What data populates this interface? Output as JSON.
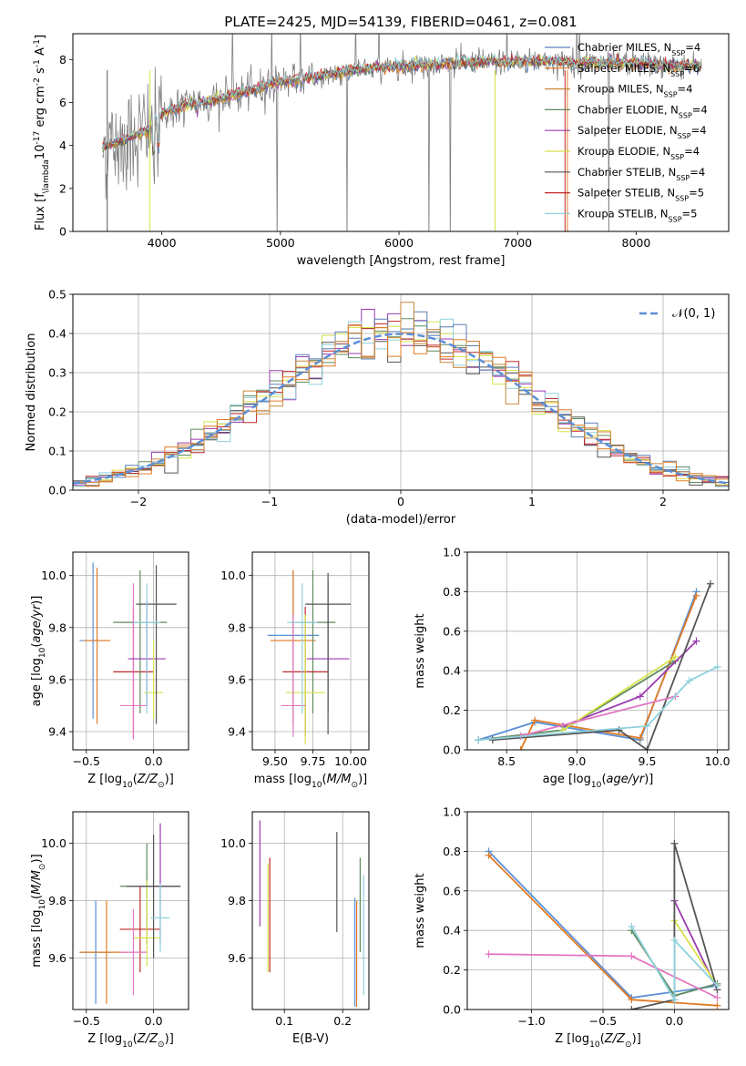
{
  "figure": {
    "title": "PLATE=2425, MJD=54139, FIBERID=0461, z=0.081"
  },
  "colors": {
    "tab10": [
      "#1f77b4",
      "#ff7f0e",
      "#2ca02c",
      "#d62728",
      "#9467bd",
      "#8c564b",
      "#e377c2",
      "#7f7f7f",
      "#bcbd22",
      "#17becf"
    ],
    "models": [
      "#5b7fb6",
      "#e07b25",
      "#c9873a",
      "#5e8a5e",
      "#9b3bb0",
      "#d8e24a",
      "#555555",
      "#c0282a",
      "#8fd1dc"
    ],
    "model_weights": [
      "#5b8fd6",
      "#e07b25",
      "#5e8a5e",
      "#9b3bb0",
      "#d8e24a",
      "#555555",
      "#e377c2",
      "#8fd1dc"
    ],
    "normal_curve": "#5b8fd6",
    "grid": "#b0b0b0"
  },
  "chart_data": [
    {
      "id": "spectrum",
      "type": "line",
      "xlabel": "wavelength [Angstrom, rest frame]",
      "ylabel": "Flux [f$_\\lambda$10$^{-17}$ erg cm$^{-2}$ s$^{-1}$ A$^{-1}$]",
      "xlim": [
        3250,
        8780
      ],
      "ylim": [
        0,
        9.2
      ],
      "xticks": [
        4000,
        5000,
        6000,
        7000,
        8000
      ],
      "yticks": [
        0,
        2,
        4,
        6,
        8
      ],
      "grid": false,
      "legend_position": "top-right",
      "continuum": {
        "x": [
          3500,
          3700,
          3900,
          4000,
          4200,
          4500,
          4800,
          5000,
          5300,
          5600,
          6000,
          6400,
          6800,
          7200,
          7600,
          8000,
          8500
        ],
        "y": [
          3.9,
          4.3,
          4.8,
          5.5,
          5.9,
          6.2,
          6.6,
          7.0,
          7.2,
          7.5,
          7.7,
          7.8,
          7.9,
          7.9,
          7.85,
          7.8,
          7.7
        ]
      },
      "legend": [
        {
          "label": "Chabrier MILES, N",
          "sub": "SSP",
          "val": "=4"
        },
        {
          "label": "Salpeter MILES, N",
          "sub": "SSP",
          "val": "=6"
        },
        {
          "label": "Kroupa MILES, N",
          "sub": "SSP",
          "val": "=4"
        },
        {
          "label": "Chabrier ELODIE, N",
          "sub": "SSP",
          "val": "=4"
        },
        {
          "label": "Salpeter ELODIE, N",
          "sub": "SSP",
          "val": "=4"
        },
        {
          "label": "Kroupa ELODIE, N",
          "sub": "SSP",
          "val": "=4"
        },
        {
          "label": "Chabrier STELIB, N",
          "sub": "SSP",
          "val": "=4"
        },
        {
          "label": "Salpeter STELIB, N",
          "sub": "SSP",
          "val": "=5"
        },
        {
          "label": "Kroupa STELIB, N",
          "sub": "SSP",
          "val": "=5"
        }
      ]
    },
    {
      "id": "residuals",
      "type": "bar",
      "xlabel": "(data-model)/error",
      "ylabel": "Normed distribution",
      "xlim": [
        -2.5,
        2.5
      ],
      "ylim": [
        0,
        0.5
      ],
      "xticks": [
        -2,
        -1,
        0,
        1,
        2
      ],
      "xticklabels": [
        "−2",
        "−1",
        "0",
        "1",
        "2"
      ],
      "yticks": [
        0.0,
        0.1,
        0.2,
        0.3,
        0.4,
        0.5
      ],
      "yticklabels": [
        "0.0",
        "0.1",
        "0.2",
        "0.3",
        "0.4",
        "0.5"
      ],
      "grid": true,
      "bin_width": 0.1,
      "legend_label": "𝒩(0, 1)",
      "legend_position": "top-right"
    },
    {
      "id": "z-age",
      "type": "scatter",
      "xlabel": "Z [log$_{10}$($Z/Z_\\odot$)]",
      "ylabel": "age  [log$_{10}$($age/yr$)]",
      "xlim": [
        -0.6,
        0.26
      ],
      "ylim": [
        9.33,
        10.09
      ],
      "xticks": [
        -0.5,
        0.0
      ],
      "xticklabels": [
        "−0.5",
        "0.0"
      ],
      "yticks": [
        9.4,
        9.6,
        9.8,
        10.0
      ],
      "yticklabels": [
        "9.4",
        "9.6",
        "9.8",
        "10.0"
      ],
      "grid": true,
      "points": [
        {
          "x": -0.45,
          "xerr": 0.1,
          "y": 9.75,
          "yerr_lo": 0.3,
          "yerr_hi": 0.3,
          "c": 0
        },
        {
          "x": -0.42,
          "xerr": 0.1,
          "y": 9.75,
          "yerr_lo": 0.32,
          "yerr_hi": 0.28,
          "c": 1
        },
        {
          "x": -0.15,
          "xerr": 0.15,
          "y": 9.63,
          "yerr_lo": 0.25,
          "yerr_hi": 0.25,
          "c": 3
        },
        {
          "x": -0.1,
          "xerr": 0.2,
          "y": 9.82,
          "yerr_lo": 0.35,
          "yerr_hi": 0.2,
          "c": 2
        },
        {
          "x": -0.15,
          "xerr": 0.1,
          "y": 9.5,
          "yerr_lo": 0.13,
          "yerr_hi": 0.47,
          "c": 6
        },
        {
          "x": -0.05,
          "xerr": 0.14,
          "y": 9.68,
          "yerr_lo": 0.18,
          "yerr_hi": 0.22,
          "c": 4
        },
        {
          "x": 0.0,
          "xerr": 0.07,
          "y": 9.55,
          "yerr_lo": 0.1,
          "yerr_hi": 0.2,
          "c": 5
        },
        {
          "x": 0.02,
          "xerr": 0.15,
          "y": 9.89,
          "yerr_lo": 0.46,
          "yerr_hi": 0.15,
          "c": 7
        },
        {
          "x": -0.05,
          "xerr": 0.1,
          "y": 9.82,
          "yerr_lo": 0.35,
          "yerr_hi": 0.15,
          "c": 8
        }
      ]
    },
    {
      "id": "mass-age",
      "type": "scatter",
      "xlabel": "mass [log$_{10}$($M/M_\\odot$)]",
      "ylabel": "",
      "xlim": [
        9.35,
        10.12
      ],
      "ylim": [
        9.33,
        10.09
      ],
      "xticks": [
        9.5,
        9.75,
        10.0
      ],
      "xticklabels": [
        "9.50",
        "9.75",
        "10.00"
      ],
      "yticks": [
        9.4,
        9.6,
        9.8,
        10.0
      ],
      "yticklabels": [
        "9.4",
        "9.6",
        "9.8",
        "10.0"
      ],
      "grid": true,
      "points": [
        {
          "x": 9.62,
          "xerr": 0.17,
          "y": 9.77,
          "yerr_lo": 0.3,
          "yerr_hi": 0.25,
          "c": 0
        },
        {
          "x": 9.62,
          "xerr": 0.15,
          "y": 9.75,
          "yerr_lo": 0.32,
          "yerr_hi": 0.27,
          "c": 1
        },
        {
          "x": 9.75,
          "xerr": 0.15,
          "y": 9.82,
          "yerr_lo": 0.35,
          "yerr_hi": 0.2,
          "c": 2
        },
        {
          "x": 9.7,
          "xerr": 0.15,
          "y": 9.63,
          "yerr_lo": 0.25,
          "yerr_hi": 0.25,
          "c": 3
        },
        {
          "x": 9.85,
          "xerr": 0.14,
          "y": 9.68,
          "yerr_lo": 0.2,
          "yerr_hi": 0.3,
          "c": 4
        },
        {
          "x": 9.7,
          "xerr": 0.13,
          "y": 9.55,
          "yerr_lo": 0.2,
          "yerr_hi": 0.3,
          "c": 5
        },
        {
          "x": 9.85,
          "xerr": 0.15,
          "y": 9.89,
          "yerr_lo": 0.5,
          "yerr_hi": 0.12,
          "c": 7
        },
        {
          "x": 9.62,
          "xerr": 0.08,
          "y": 9.5,
          "yerr_lo": 0.12,
          "yerr_hi": 0.35,
          "c": 6
        },
        {
          "x": 9.68,
          "xerr": 0.1,
          "y": 9.82,
          "yerr_lo": 0.35,
          "yerr_hi": 0.15,
          "c": 8
        }
      ]
    },
    {
      "id": "age-weight",
      "type": "line",
      "xlabel": "age  [log$_{10}$($age/yr$)]",
      "ylabel": "mass weight",
      "xlim": [
        8.22,
        10.08
      ],
      "ylim": [
        0,
        1.0
      ],
      "xticks": [
        8.5,
        9.0,
        9.5,
        10.0
      ],
      "xticklabels": [
        "8.5",
        "9.0",
        "9.5",
        "10.0"
      ],
      "yticks": [
        0,
        0.2,
        0.4,
        0.6,
        0.8,
        1.0
      ],
      "yticklabels": [
        "0.0",
        "0.2",
        "0.4",
        "0.6",
        "0.8",
        "1.0"
      ],
      "grid": true,
      "series": [
        {
          "c": 0,
          "x": [
            8.3,
            8.7,
            9.45,
            9.85
          ],
          "y": [
            0.05,
            0.14,
            0.05,
            0.8
          ]
        },
        {
          "c": 1,
          "x": [
            8.6,
            8.7,
            9.45,
            9.85
          ],
          "y": [
            0.0,
            0.15,
            0.06,
            0.78
          ]
        },
        {
          "c": 2,
          "x": [
            8.3,
            8.9,
            9.7
          ],
          "y": [
            0.05,
            0.1,
            0.45
          ]
        },
        {
          "c": 3,
          "x": [
            8.9,
            9.45,
            9.85
          ],
          "y": [
            0.12,
            0.27,
            0.55
          ]
        },
        {
          "c": 4,
          "x": [
            8.9,
            9.7
          ],
          "y": [
            0.1,
            0.47
          ]
        },
        {
          "c": 5,
          "x": [
            8.4,
            9.3,
            9.5,
            9.95
          ],
          "y": [
            0.05,
            0.1,
            0.0,
            0.84
          ]
        },
        {
          "c": 6,
          "x": [
            8.6,
            9.7
          ],
          "y": [
            0.07,
            0.27
          ]
        },
        {
          "c": 7,
          "x": [
            8.3,
            9.5,
            9.8,
            10.0
          ],
          "y": [
            0.05,
            0.12,
            0.35,
            0.42
          ]
        }
      ]
    },
    {
      "id": "z-mass",
      "type": "scatter",
      "xlabel": "Z [log$_{10}$($Z/Z_\\odot$)]",
      "ylabel": "mass [log$_{10}$($M/M_\\odot$)]",
      "xlim": [
        -0.6,
        0.26
      ],
      "ylim": [
        9.42,
        10.11
      ],
      "xticks": [
        -0.5,
        0.0
      ],
      "xticklabels": [
        "−0.5",
        "0.0"
      ],
      "yticks": [
        9.6,
        9.8,
        10.0
      ],
      "yticklabels": [
        "9.6",
        "9.8",
        "10.0"
      ],
      "grid": true,
      "points": [
        {
          "x": -0.43,
          "xerr": 0.12,
          "y": 9.62,
          "yerr_lo": 0.18,
          "yerr_hi": 0.18,
          "c": 0
        },
        {
          "x": -0.35,
          "xerr": 0.2,
          "y": 9.62,
          "yerr_lo": 0.18,
          "yerr_hi": 0.18,
          "c": 1
        },
        {
          "x": -0.1,
          "xerr": 0.15,
          "y": 9.7,
          "yerr_lo": 0.15,
          "yerr_hi": 0.15,
          "c": 3
        },
        {
          "x": -0.05,
          "xerr": 0.2,
          "y": 9.85,
          "yerr_lo": 0.2,
          "yerr_hi": 0.15,
          "c": 2
        },
        {
          "x": 0.05,
          "xerr": 0.15,
          "y": 9.85,
          "yerr_lo": 0.2,
          "yerr_hi": 0.22,
          "c": 4
        },
        {
          "x": -0.05,
          "xerr": 0.1,
          "y": 9.67,
          "yerr_lo": 0.1,
          "yerr_hi": 0.2,
          "c": 5
        },
        {
          "x": 0.0,
          "xerr": 0.2,
          "y": 9.85,
          "yerr_lo": 0.25,
          "yerr_hi": 0.18,
          "c": 7
        },
        {
          "x": -0.15,
          "xerr": 0.1,
          "y": 9.62,
          "yerr_lo": 0.15,
          "yerr_hi": 0.15,
          "c": 6
        },
        {
          "x": 0.05,
          "xerr": 0.07,
          "y": 9.74,
          "yerr_lo": 0.12,
          "yerr_hi": 0.12,
          "c": 8
        }
      ]
    },
    {
      "id": "ebv-mass",
      "type": "scatter",
      "xlabel": "E(B-V)",
      "ylabel": "",
      "xlim": [
        0.045,
        0.245
      ],
      "ylim": [
        9.42,
        10.11
      ],
      "xticks": [
        0.1,
        0.2
      ],
      "xticklabels": [
        "0.1",
        "0.2"
      ],
      "yticks": [
        9.6,
        9.8,
        10.0
      ],
      "yticklabels": [
        "9.6",
        "9.8",
        "10.0"
      ],
      "grid": true,
      "points": [
        {
          "x": 0.058,
          "y": 9.9,
          "yerr_lo": 0.19,
          "yerr_hi": 0.18,
          "c": 4
        },
        {
          "x": 0.072,
          "y": 9.75,
          "yerr_lo": 0.2,
          "yerr_hi": 0.18,
          "c": 5
        },
        {
          "x": 0.075,
          "y": 9.75,
          "yerr_lo": 0.2,
          "yerr_hi": 0.2,
          "c": 3
        },
        {
          "x": 0.19,
          "y": 9.86,
          "yerr_lo": 0.17,
          "yerr_hi": 0.18,
          "c": 7
        },
        {
          "x": 0.221,
          "y": 9.63,
          "yerr_lo": 0.2,
          "yerr_hi": 0.18,
          "c": 0
        },
        {
          "x": 0.224,
          "y": 9.63,
          "yerr_lo": 0.2,
          "yerr_hi": 0.17,
          "c": 1
        },
        {
          "x": 0.23,
          "y": 9.8,
          "yerr_lo": 0.18,
          "yerr_hi": 0.15,
          "c": 2
        },
        {
          "x": 0.236,
          "y": 9.67,
          "yerr_lo": 0.2,
          "yerr_hi": 0.22,
          "c": 8
        }
      ]
    },
    {
      "id": "z-weight",
      "type": "line",
      "xlabel": "Z [log$_{10}$($Z/Z_\\odot$)]",
      "ylabel": "mass weight",
      "xlim": [
        -1.45,
        0.38
      ],
      "ylim": [
        0,
        1.0
      ],
      "xticks": [
        -1.0,
        -0.5,
        0.0
      ],
      "xticklabels": [
        "−1.0",
        "−0.5",
        "0.0"
      ],
      "yticks": [
        0,
        0.2,
        0.4,
        0.6,
        0.8,
        1.0
      ],
      "yticklabels": [
        "0.0",
        "0.2",
        "0.4",
        "0.6",
        "0.8",
        "1.0"
      ],
      "grid": true,
      "series": [
        {
          "c": 0,
          "x": [
            -1.3,
            -0.3,
            0.3
          ],
          "y": [
            0.8,
            0.06,
            0.12
          ]
        },
        {
          "c": 1,
          "x": [
            -1.3,
            -0.3,
            0.3
          ],
          "y": [
            0.78,
            0.05,
            0.02
          ]
        },
        {
          "c": 2,
          "x": [
            -0.3,
            0.0,
            0.3
          ],
          "y": [
            0.4,
            0.07,
            0.13
          ]
        },
        {
          "c": 3,
          "x": [
            0.0,
            0.3
          ],
          "y": [
            0.55,
            0.1
          ]
        },
        {
          "c": 4,
          "x": [
            0.0,
            0.3
          ],
          "y": [
            0.45,
            0.12
          ]
        },
        {
          "c": 5,
          "x": [
            -0.3,
            0.0,
            0.0,
            0.3
          ],
          "y": [
            0.0,
            0.05,
            0.84,
            0.1
          ]
        },
        {
          "c": 6,
          "x": [
            -1.3,
            -0.3,
            0.3
          ],
          "y": [
            0.28,
            0.27,
            0.06
          ]
        },
        {
          "c": 7,
          "x": [
            -0.3,
            0.0,
            0.0,
            0.3
          ],
          "y": [
            0.42,
            0.05,
            0.35,
            0.12
          ]
        }
      ]
    }
  ]
}
